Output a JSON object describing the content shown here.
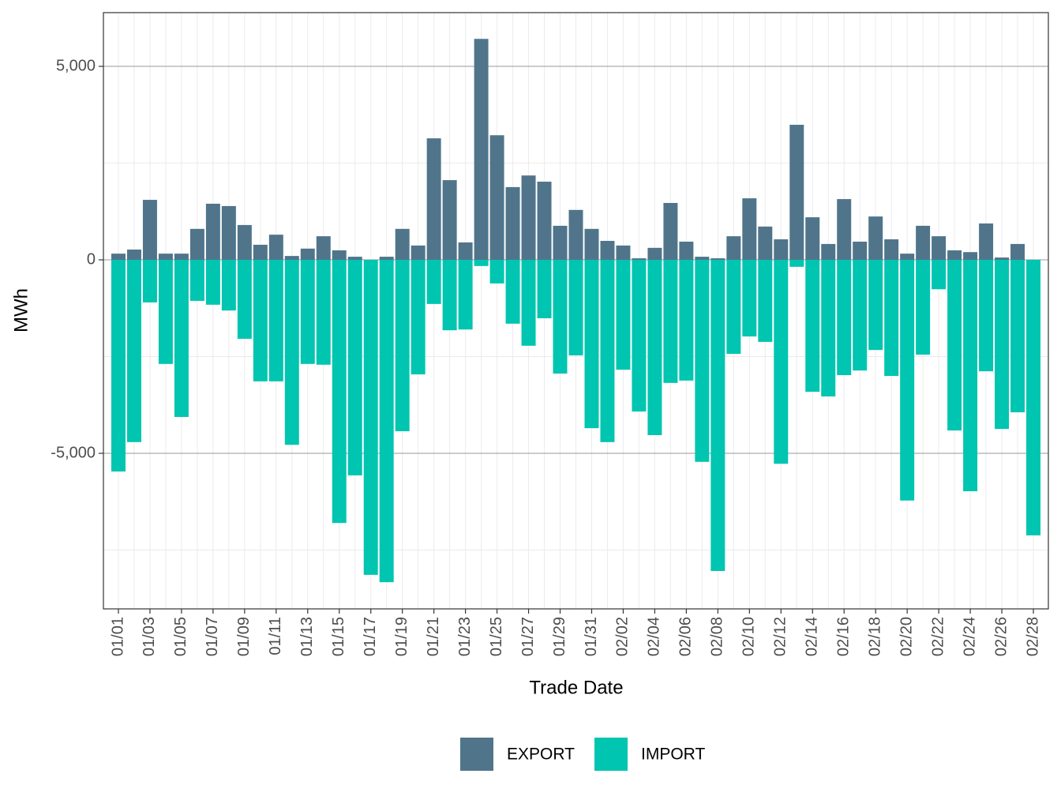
{
  "chart_data": {
    "type": "bar",
    "x_label": "Trade Date",
    "y_label": "MWh",
    "categories": [
      "01/01",
      null,
      "01/03",
      null,
      "01/05",
      null,
      "01/07",
      null,
      "01/09",
      null,
      "01/11",
      null,
      "01/13",
      null,
      "01/15",
      null,
      "01/17",
      null,
      "01/19",
      null,
      "01/21",
      null,
      "01/23",
      null,
      "01/25",
      null,
      "01/27",
      null,
      "01/29",
      null,
      "01/31",
      null,
      "02/02",
      null,
      "02/04",
      null,
      "02/06",
      null,
      "02/08",
      null,
      "02/10",
      null,
      "02/12",
      null,
      "02/14",
      null,
      "02/16",
      null,
      "02/18",
      null,
      "02/20",
      null,
      "02/22",
      null,
      "02/24",
      null,
      "02/26",
      null,
      "02/28"
    ],
    "series": [
      {
        "name": "EXPORT",
        "color": "#50758b",
        "values": [
          160,
          265,
          1550,
          160,
          160,
          800,
          1450,
          1390,
          900,
          390,
          650,
          100,
          290,
          610,
          245,
          80,
          0,
          80,
          800,
          370,
          3140,
          2060,
          450,
          5710,
          3220,
          1880,
          2180,
          2020,
          880,
          1290,
          800,
          490,
          370,
          40,
          310,
          1470,
          470,
          80,
          40,
          610,
          1590,
          860,
          530,
          3490,
          1100,
          410,
          1570,
          470,
          1120,
          530,
          160,
          880,
          610,
          245,
          200,
          940,
          60,
          410,
          0
        ]
      },
      {
        "name": "IMPORT",
        "color": "#00c5b0",
        "values": [
          -5470,
          -4710,
          -1100,
          -2690,
          -4060,
          -1060,
          -1160,
          -1310,
          -2040,
          -3140,
          -3140,
          -4780,
          -2690,
          -2710,
          -6800,
          -5570,
          -8140,
          -8330,
          -4430,
          -2960,
          -1140,
          -1820,
          -1800,
          -160,
          -610,
          -1650,
          -2220,
          -1510,
          -2940,
          -2470,
          -4350,
          -4710,
          -2840,
          -3920,
          -4530,
          -3180,
          -3120,
          -5220,
          -8040,
          -2430,
          -1980,
          -2120,
          -5270,
          -180,
          -3410,
          -3530,
          -2980,
          -2860,
          -2330,
          -3000,
          -6220,
          -2450,
          -760,
          -4410,
          -5980,
          -2880,
          -4370,
          -3940,
          -7120
        ]
      }
    ],
    "ylim": [
      -9020,
      6388
    ],
    "yticks": [
      {
        "value": -5000,
        "label": "-5,000"
      },
      0,
      {
        "value": 5000,
        "label": "5,000"
      }
    ],
    "grid": true,
    "legend": "bottom"
  }
}
